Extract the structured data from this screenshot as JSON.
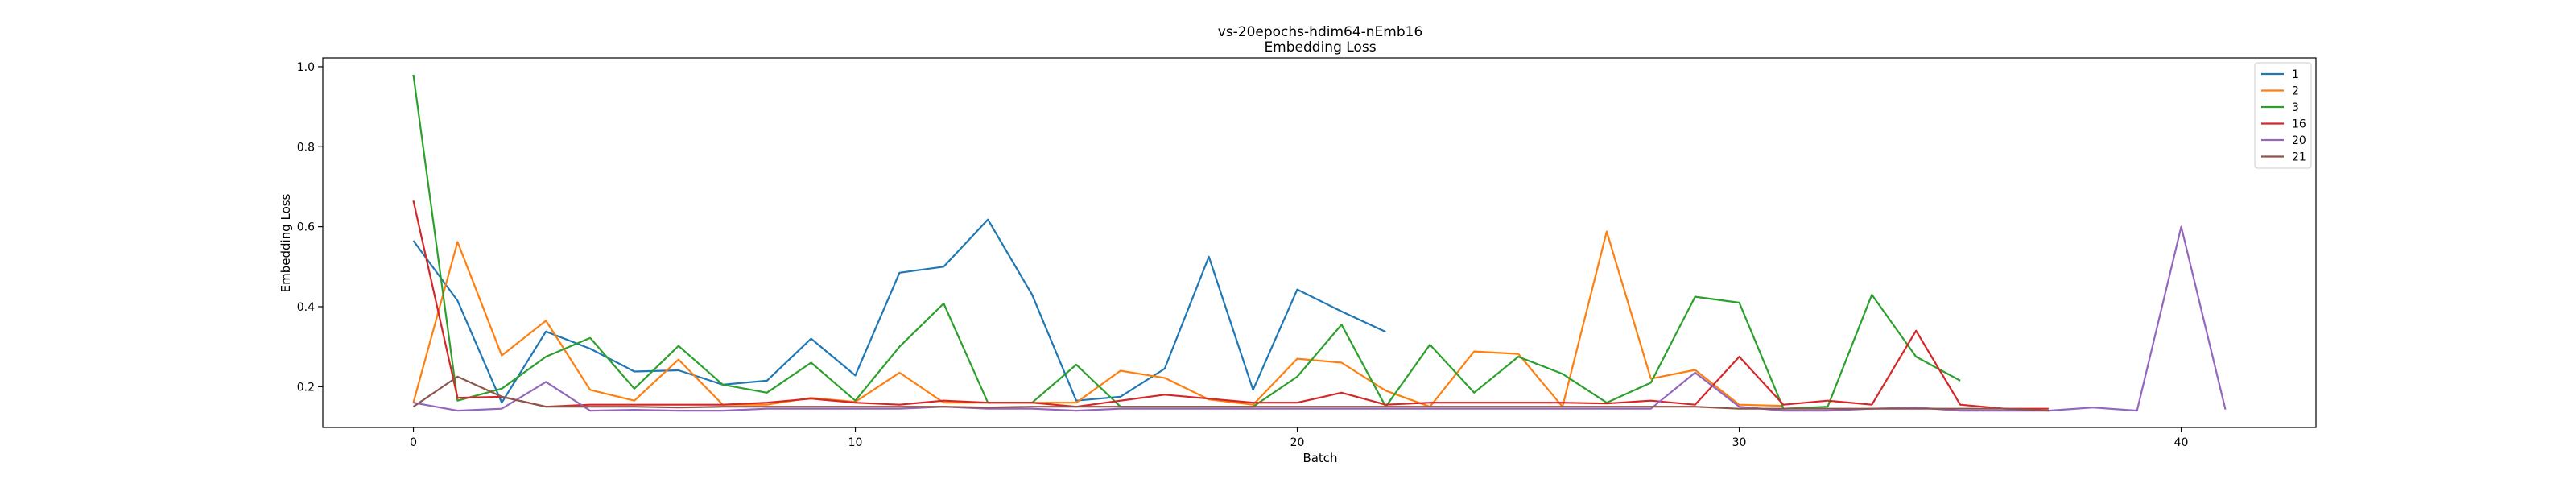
{
  "chart_data": {
    "type": "line",
    "title": "vs-20epochs-hdim64-nEmb16",
    "subtitle": "Embedding Loss",
    "xlabel": "Batch",
    "ylabel": "Embedding Loss",
    "xlim": [
      -2.05,
      43.05
    ],
    "ylim": [
      0.098,
      1.022
    ],
    "xticks": [
      0,
      10,
      20,
      30,
      40
    ],
    "yticks": [
      0.2,
      0.4,
      0.6,
      0.8,
      1.0
    ],
    "xtick_labels": [
      "0",
      "10",
      "20",
      "30",
      "40"
    ],
    "ytick_labels": [
      "0.2",
      "0.4",
      "0.6",
      "0.8",
      "1.0"
    ],
    "grid": false,
    "legend_position": "top-right",
    "series": [
      {
        "name": "1",
        "color": "#1f77b4",
        "x": [
          0,
          1,
          2,
          3,
          4,
          5,
          6,
          7,
          8,
          9,
          10,
          11,
          12,
          13,
          14,
          15,
          16,
          17,
          18,
          19,
          20,
          21,
          22
        ],
        "values": [
          0.565,
          0.415,
          0.16,
          0.338,
          0.295,
          0.238,
          0.241,
          0.205,
          0.215,
          0.32,
          0.228,
          0.485,
          0.5,
          0.618,
          0.43,
          0.165,
          0.175,
          0.245,
          0.525,
          0.192,
          0.443,
          0.388,
          0.337
        ]
      },
      {
        "name": "2",
        "color": "#ff7f0e",
        "x": [
          0,
          1,
          2,
          3,
          4,
          5,
          6,
          7,
          8,
          9,
          10,
          11,
          12,
          13,
          14,
          15,
          16,
          17,
          18,
          19,
          20,
          21,
          22,
          23,
          24,
          25,
          26,
          27,
          28,
          29,
          30,
          31
        ],
        "values": [
          0.16,
          0.562,
          0.278,
          0.365,
          0.192,
          0.165,
          0.268,
          0.155,
          0.155,
          0.172,
          0.162,
          0.235,
          0.16,
          0.16,
          0.16,
          0.16,
          0.24,
          0.222,
          0.168,
          0.155,
          0.27,
          0.26,
          0.19,
          0.15,
          0.288,
          0.282,
          0.15,
          0.588,
          0.22,
          0.242,
          0.155,
          0.152
        ]
      },
      {
        "name": "3",
        "color": "#2ca02c",
        "x": [
          0,
          1,
          2,
          3,
          4,
          5,
          6,
          7,
          8,
          9,
          10,
          11,
          12,
          13,
          14,
          15,
          16,
          17,
          18,
          19,
          20,
          21,
          22,
          23,
          24,
          25,
          26,
          27,
          28,
          29,
          30,
          31,
          32,
          33,
          34,
          35
        ],
        "values": [
          0.98,
          0.165,
          0.195,
          0.275,
          0.322,
          0.195,
          0.302,
          0.205,
          0.185,
          0.26,
          0.165,
          0.3,
          0.408,
          0.16,
          0.16,
          0.255,
          0.15,
          0.15,
          0.15,
          0.15,
          0.225,
          0.355,
          0.15,
          0.305,
          0.185,
          0.275,
          0.232,
          0.16,
          0.21,
          0.425,
          0.41,
          0.145,
          0.15,
          0.43,
          0.275,
          0.215
        ]
      },
      {
        "name": "16",
        "color": "#d62728",
        "x": [
          0,
          1,
          2,
          3,
          4,
          5,
          6,
          7,
          8,
          9,
          10,
          11,
          12,
          13,
          14,
          15,
          16,
          17,
          18,
          19,
          20,
          21,
          22,
          23,
          24,
          25,
          26,
          27,
          28,
          29,
          30,
          31,
          32,
          33,
          34,
          35,
          36,
          37
        ],
        "values": [
          0.665,
          0.172,
          0.175,
          0.15,
          0.155,
          0.155,
          0.155,
          0.155,
          0.16,
          0.17,
          0.16,
          0.155,
          0.165,
          0.16,
          0.16,
          0.15,
          0.165,
          0.18,
          0.17,
          0.16,
          0.16,
          0.185,
          0.155,
          0.16,
          0.16,
          0.16,
          0.16,
          0.158,
          0.165,
          0.155,
          0.275,
          0.155,
          0.165,
          0.155,
          0.34,
          0.155,
          0.145,
          0.145
        ]
      },
      {
        "name": "20",
        "color": "#9467bd",
        "x": [
          0,
          1,
          2,
          3,
          4,
          5,
          6,
          7,
          8,
          9,
          10,
          11,
          12,
          13,
          14,
          15,
          16,
          17,
          18,
          19,
          20,
          21,
          22,
          23,
          24,
          25,
          26,
          27,
          28,
          29,
          30,
          31,
          32,
          33,
          34,
          35,
          36,
          37,
          38,
          39,
          40,
          41
        ],
        "values": [
          0.16,
          0.14,
          0.145,
          0.212,
          0.14,
          0.142,
          0.14,
          0.14,
          0.145,
          0.145,
          0.145,
          0.145,
          0.15,
          0.145,
          0.145,
          0.14,
          0.145,
          0.145,
          0.145,
          0.145,
          0.145,
          0.145,
          0.145,
          0.145,
          0.145,
          0.145,
          0.145,
          0.145,
          0.145,
          0.235,
          0.15,
          0.14,
          0.14,
          0.145,
          0.148,
          0.14,
          0.14,
          0.14,
          0.148,
          0.14,
          0.6,
          0.143
        ]
      },
      {
        "name": "21",
        "color": "#8c564b",
        "x": [
          0,
          1,
          2,
          3,
          4,
          5,
          6,
          7,
          8,
          9,
          10,
          11,
          12,
          13,
          14,
          15,
          16,
          17,
          18,
          19,
          20,
          21,
          22,
          23,
          24,
          25,
          26,
          27,
          28,
          29,
          30,
          31,
          32,
          33,
          34,
          35,
          36,
          37
        ],
        "values": [
          0.15,
          0.225,
          0.175,
          0.15,
          0.15,
          0.15,
          0.148,
          0.15,
          0.15,
          0.15,
          0.15,
          0.15,
          0.15,
          0.148,
          0.15,
          0.15,
          0.15,
          0.15,
          0.15,
          0.15,
          0.15,
          0.15,
          0.15,
          0.15,
          0.15,
          0.15,
          0.15,
          0.15,
          0.15,
          0.15,
          0.145,
          0.145,
          0.145,
          0.145,
          0.145,
          0.145,
          0.145,
          0.14
        ]
      }
    ]
  }
}
